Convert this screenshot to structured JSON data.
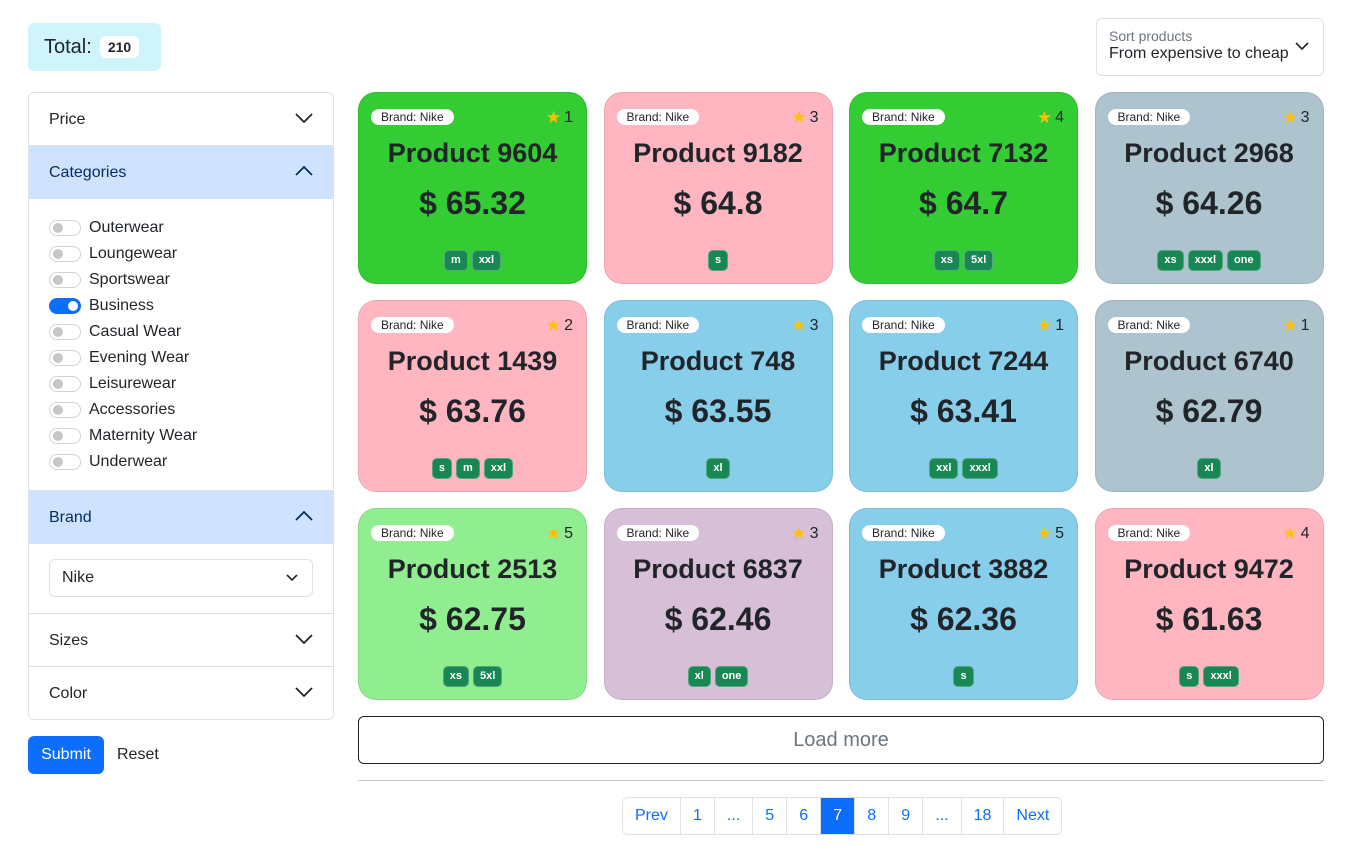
{
  "total": {
    "label": "Total:",
    "count": "210"
  },
  "sort": {
    "label": "Sort products",
    "value": "From expensive to cheap"
  },
  "filters": {
    "price": {
      "label": "Price"
    },
    "categories": {
      "label": "Categories",
      "items": [
        {
          "label": "Outerwear",
          "checked": false
        },
        {
          "label": "Loungewear",
          "checked": false
        },
        {
          "label": "Sportswear",
          "checked": false
        },
        {
          "label": "Business",
          "checked": true
        },
        {
          "label": "Casual Wear",
          "checked": false
        },
        {
          "label": "Evening Wear",
          "checked": false
        },
        {
          "label": "Leisurewear",
          "checked": false
        },
        {
          "label": "Accessories",
          "checked": false
        },
        {
          "label": "Maternity Wear",
          "checked": false
        },
        {
          "label": "Underwear",
          "checked": false
        }
      ]
    },
    "brand": {
      "label": "Brand",
      "selected": "Nike"
    },
    "sizes": {
      "label": "Sizes"
    },
    "color": {
      "label": "Color"
    }
  },
  "actions": {
    "submit": "Submit",
    "reset": "Reset"
  },
  "products": [
    {
      "brand": "Brand: Nike",
      "rating": "1",
      "name": "Product 9604",
      "price": "$ 65.32",
      "sizes": [
        "m",
        "xxl"
      ],
      "color": "#33cc33"
    },
    {
      "brand": "Brand: Nike",
      "rating": "3",
      "name": "Product 9182",
      "price": "$ 64.8",
      "sizes": [
        "s"
      ],
      "color": "#ffb6c1"
    },
    {
      "brand": "Brand: Nike",
      "rating": "4",
      "name": "Product 7132",
      "price": "$ 64.7",
      "sizes": [
        "xs",
        "5xl"
      ],
      "color": "#33cc33"
    },
    {
      "brand": "Brand: Nike",
      "rating": "3",
      "name": "Product 2968",
      "price": "$ 64.26",
      "sizes": [
        "xs",
        "xxxl",
        "one"
      ],
      "color": "#adc4ce"
    },
    {
      "brand": "Brand: Nike",
      "rating": "2",
      "name": "Product 1439",
      "price": "$ 63.76",
      "sizes": [
        "s",
        "m",
        "xxl"
      ],
      "color": "#ffb6c1"
    },
    {
      "brand": "Brand: Nike",
      "rating": "3",
      "name": "Product 748",
      "price": "$ 63.55",
      "sizes": [
        "xl"
      ],
      "color": "#87ceeb"
    },
    {
      "brand": "Brand: Nike",
      "rating": "1",
      "name": "Product 7244",
      "price": "$ 63.41",
      "sizes": [
        "xxl",
        "xxxl"
      ],
      "color": "#87ceeb"
    },
    {
      "brand": "Brand: Nike",
      "rating": "1",
      "name": "Product 6740",
      "price": "$ 62.79",
      "sizes": [
        "xl"
      ],
      "color": "#adc4ce"
    },
    {
      "brand": "Brand: Nike",
      "rating": "5",
      "name": "Product 2513",
      "price": "$ 62.75",
      "sizes": [
        "xs",
        "5xl"
      ],
      "color": "#90ee90"
    },
    {
      "brand": "Brand: Nike",
      "rating": "3",
      "name": "Product 6837",
      "price": "$ 62.46",
      "sizes": [
        "xl",
        "one"
      ],
      "color": "#d8bfd8"
    },
    {
      "brand": "Brand: Nike",
      "rating": "5",
      "name": "Product 3882",
      "price": "$ 62.36",
      "sizes": [
        "s"
      ],
      "color": "#87ceeb"
    },
    {
      "brand": "Brand: Nike",
      "rating": "4",
      "name": "Product 9472",
      "price": "$ 61.63",
      "sizes": [
        "s",
        "xxxl"
      ],
      "color": "#ffb6c1"
    }
  ],
  "load_more": "Load more",
  "pagination": {
    "pages": [
      "Prev",
      "1",
      "...",
      "5",
      "6",
      "7",
      "8",
      "9",
      "...",
      "18",
      "Next"
    ],
    "active": "7"
  },
  "icons": {
    "chevron": "chevron-down-icon",
    "star": "star-icon"
  }
}
